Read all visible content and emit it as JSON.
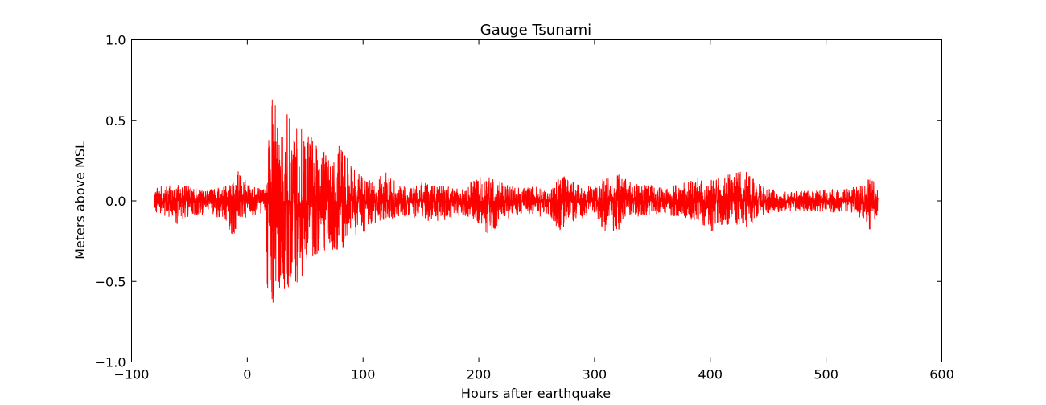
{
  "chart_data": {
    "type": "line",
    "title": "Gauge Tsunami",
    "xlabel": "Hours after earthquake",
    "ylabel": "Meters above MSL",
    "xlim": [
      -100,
      600
    ],
    "ylim": [
      -1.0,
      1.0
    ],
    "xticks": [
      -100,
      0,
      100,
      200,
      300,
      400,
      500,
      600
    ],
    "xtick_labels": [
      "−100",
      "0",
      "100",
      "200",
      "300",
      "400",
      "500",
      "600"
    ],
    "yticks": [
      -1.0,
      -0.5,
      0.0,
      0.5,
      1.0
    ],
    "ytick_labels": [
      "−1.0",
      "−0.5",
      "0.0",
      "0.5",
      "1.0"
    ],
    "grid": false,
    "series_color": "#ff0000",
    "series": [
      {
        "x_range": [
          -80,
          545
        ],
        "envelope": {
          "x": [
            -80,
            -70,
            -60,
            -50,
            -40,
            -30,
            -20,
            -12,
            -7,
            0,
            10,
            16,
            17,
            20,
            22,
            30,
            35,
            40,
            45,
            50,
            60,
            70,
            80,
            90,
            100,
            110,
            120,
            130,
            140,
            150,
            160,
            170,
            180,
            190,
            200,
            210,
            220,
            230,
            240,
            250,
            260,
            270,
            280,
            290,
            300,
            310,
            320,
            330,
            340,
            350,
            360,
            370,
            380,
            390,
            400,
            410,
            420,
            430,
            440,
            450,
            460,
            470,
            480,
            490,
            500,
            510,
            520,
            530,
            538,
            545
          ],
          "max": [
            0.08,
            0.1,
            0.1,
            0.1,
            0.07,
            0.08,
            0.1,
            0.12,
            0.23,
            0.1,
            0.08,
            0.08,
            0.35,
            0.63,
            0.69,
            0.55,
            0.55,
            0.45,
            0.52,
            0.47,
            0.35,
            0.28,
            0.35,
            0.22,
            0.15,
            0.12,
            0.19,
            0.1,
            0.08,
            0.12,
            0.1,
            0.1,
            0.08,
            0.1,
            0.17,
            0.15,
            0.12,
            0.1,
            0.08,
            0.09,
            0.05,
            0.17,
            0.13,
            0.1,
            0.09,
            0.16,
            0.19,
            0.12,
            0.1,
            0.1,
            0.08,
            0.1,
            0.12,
            0.15,
            0.15,
            0.15,
            0.18,
            0.19,
            0.12,
            0.08,
            0.06,
            0.06,
            0.07,
            0.06,
            0.08,
            0.07,
            0.08,
            0.1,
            0.15,
            0.09
          ],
          "min": [
            -0.08,
            -0.1,
            -0.15,
            -0.1,
            -0.09,
            -0.09,
            -0.12,
            -0.24,
            -0.12,
            -0.1,
            -0.08,
            -0.08,
            -0.58,
            -0.58,
            -0.67,
            -0.52,
            -0.65,
            -0.5,
            -0.55,
            -0.4,
            -0.35,
            -0.3,
            -0.34,
            -0.25,
            -0.22,
            -0.15,
            -0.12,
            -0.1,
            -0.1,
            -0.12,
            -0.13,
            -0.12,
            -0.1,
            -0.1,
            -0.15,
            -0.23,
            -0.12,
            -0.1,
            -0.08,
            -0.1,
            -0.1,
            -0.19,
            -0.13,
            -0.12,
            -0.1,
            -0.2,
            -0.21,
            -0.12,
            -0.1,
            -0.1,
            -0.08,
            -0.1,
            -0.12,
            -0.12,
            -0.2,
            -0.15,
            -0.15,
            -0.17,
            -0.12,
            -0.08,
            -0.07,
            -0.06,
            -0.07,
            -0.06,
            -0.08,
            -0.07,
            -0.08,
            -0.13,
            -0.19,
            -0.07
          ]
        }
      }
    ]
  }
}
